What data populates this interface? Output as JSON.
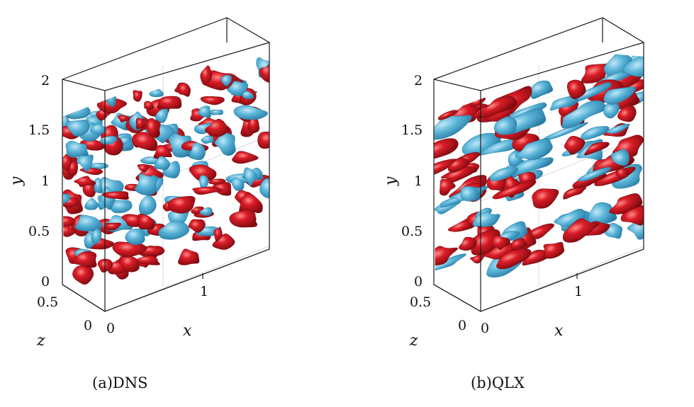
{
  "figure": {
    "panels": [
      {
        "id": "a",
        "caption": "(a)DNS",
        "y_label": "y",
        "x_label": "x",
        "z_label": "z",
        "y_ticks": [
          "2",
          "1.5",
          "1",
          "0.5",
          "0"
        ],
        "x_ticks": [
          "0",
          "1"
        ],
        "z_ticks": [
          "0.5",
          "0"
        ],
        "density": 0.62
      },
      {
        "id": "b",
        "caption": "(b)QLX",
        "y_label": "y",
        "x_label": "x",
        "z_label": "z",
        "y_ticks": [
          "2",
          "1.5",
          "1",
          "0.5",
          "0"
        ],
        "x_ticks": [
          "0",
          "1"
        ],
        "z_ticks": [
          "0.5",
          "0"
        ],
        "density": 0.45
      }
    ],
    "colors": {
      "positive_isosurface": "#c8141e",
      "negative_isosurface": "#5ab4d8",
      "highlight": "#ff8a8a",
      "frame": "#1a1a1a"
    }
  }
}
